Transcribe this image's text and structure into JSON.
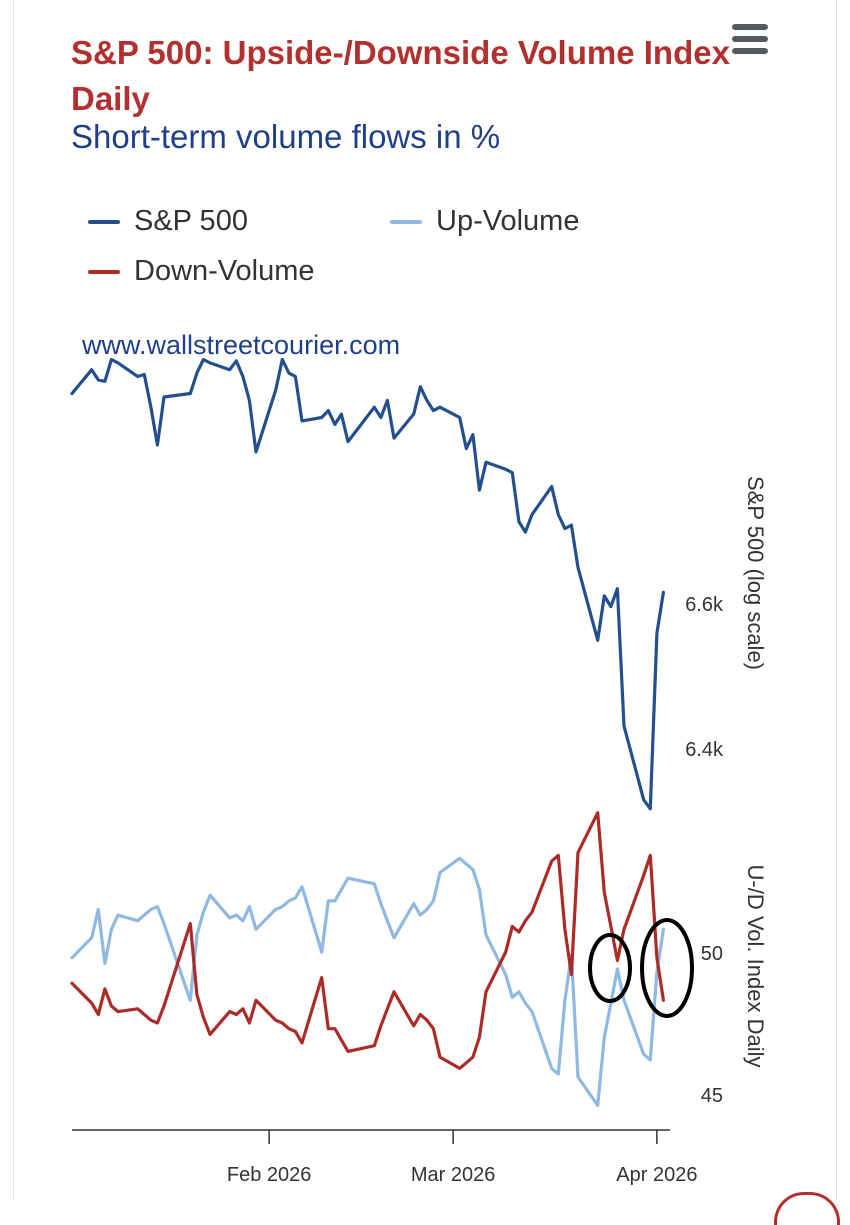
{
  "header": {
    "title": "S&P 500: Upside-/Downside Volume Index Daily",
    "subtitle": "Short-term volume flows in %",
    "menu_icon": "hamburger-menu-icon"
  },
  "watermark": "www.wallstreetcourier.com",
  "colors": {
    "title": "#b2302d",
    "subtitle": "#1f3f8c",
    "sp500": "#244f8e",
    "up_volume": "#8fb8e3",
    "down_volume": "#ad2b27"
  },
  "chart_data": {
    "type": "line",
    "title": "S&P 500: Upside-/Downside Volume Index Daily",
    "subtitle": "Short-term volume flows in %",
    "legend": {
      "placement": "top-left",
      "items": [
        "S&P 500",
        "Up-Volume",
        "Down-Volume"
      ]
    },
    "x_axis": {
      "type": "datetime",
      "tick_labels": [
        "Feb 2026",
        "Mar 2026",
        "Apr 2026"
      ],
      "range": [
        "2026-01-02",
        "2026-04-03"
      ]
    },
    "panels": [
      {
        "name": "price",
        "ylabel": "S&P 500 (log scale)",
        "scale": "log",
        "tick_labels": [
          "6.6k",
          "6.4k"
        ],
        "tick_values": [
          6600,
          6400
        ],
        "series": [
          {
            "name": "S&P 500",
            "dates": [
              "2026-01-02",
              "2026-01-05",
              "2026-01-06",
              "2026-01-07",
              "2026-01-08",
              "2026-01-09",
              "2026-01-12",
              "2026-01-13",
              "2026-01-14",
              "2026-01-15",
              "2026-01-16",
              "2026-01-20",
              "2026-01-21",
              "2026-01-22",
              "2026-01-23",
              "2026-01-26",
              "2026-01-27",
              "2026-01-28",
              "2026-01-29",
              "2026-01-30",
              "2026-02-02",
              "2026-02-03",
              "2026-02-04",
              "2026-02-05",
              "2026-02-06",
              "2026-02-09",
              "2026-02-10",
              "2026-02-11",
              "2026-02-12",
              "2026-02-13",
              "2026-02-17",
              "2026-02-18",
              "2026-02-19",
              "2026-02-20",
              "2026-02-23",
              "2026-02-24",
              "2026-02-25",
              "2026-02-26",
              "2026-02-27",
              "2026-03-02",
              "2026-03-03",
              "2026-03-04",
              "2026-03-05",
              "2026-03-06",
              "2026-03-09",
              "2026-03-10",
              "2026-03-11",
              "2026-03-12",
              "2026-03-13",
              "2026-03-16",
              "2026-03-17",
              "2026-03-18",
              "2026-03-19",
              "2026-03-20",
              "2026-03-23",
              "2026-03-24",
              "2026-03-25",
              "2026-03-26",
              "2026-03-27",
              "2026-03-30",
              "2026-03-31",
              "2026-04-01",
              "2026-04-02"
            ],
            "values": [
              6900,
              6935,
              6920,
              6918,
              6950,
              6945,
              6925,
              6928,
              6880,
              6825,
              6895,
              6900,
              6930,
              6950,
              6945,
              6935,
              6948,
              6925,
              6890,
              6815,
              6905,
              6950,
              6930,
              6925,
              6860,
              6865,
              6875,
              6855,
              6870,
              6830,
              6880,
              6865,
              6890,
              6835,
              6870,
              6910,
              6890,
              6875,
              6880,
              6865,
              6820,
              6840,
              6760,
              6800,
              6790,
              6785,
              6715,
              6700,
              6725,
              6765,
              6725,
              6705,
              6710,
              6650,
              6548,
              6610,
              6595,
              6620,
              6430,
              6330,
              6318,
              6558,
              6615
            ]
          }
        ]
      },
      {
        "name": "volume",
        "ylabel": "U-/D Vol. Index Daily",
        "tick_values": [
          50,
          45
        ],
        "series": [
          {
            "name": "Up-Volume",
            "values": [
              49.8,
              50.5,
              51.5,
              49.6,
              50.8,
              51.3,
              51.1,
              51.3,
              51.5,
              51.6,
              51.0,
              48.3,
              50.6,
              51.4,
              52.0,
              51.2,
              51.3,
              51.1,
              51.6,
              50.8,
              51.5,
              51.6,
              51.8,
              51.9,
              52.3,
              50.0,
              51.8,
              51.8,
              52.2,
              52.6,
              52.4,
              51.7,
              51.1,
              50.5,
              51.7,
              51.3,
              51.5,
              51.8,
              52.8,
              53.3,
              53.1,
              52.9,
              52.2,
              50.6,
              49.2,
              48.4,
              48.6,
              48.2,
              47.9,
              45.9,
              45.7,
              48.3,
              49.9,
              45.6,
              44.6,
              47.0,
              48.2,
              49.4,
              48.3,
              46.4,
              46.2,
              49.3,
              50.8
            ],
            "dates_ref": "panels.0.series.0.dates"
          },
          {
            "name": "Down-Volume",
            "values": [
              48.9,
              48.2,
              47.8,
              48.7,
              48.1,
              47.9,
              48.0,
              47.8,
              47.6,
              47.5,
              48.1,
              51.0,
              48.5,
              47.7,
              47.1,
              47.9,
              47.8,
              48.0,
              47.5,
              48.3,
              47.6,
              47.5,
              47.3,
              47.2,
              46.8,
              49.1,
              47.3,
              47.3,
              46.9,
              46.5,
              46.7,
              47.4,
              48.0,
              48.6,
              47.4,
              47.8,
              47.6,
              47.3,
              46.3,
              45.9,
              46.1,
              46.3,
              47.0,
              48.6,
              50.0,
              50.9,
              50.7,
              51.1,
              51.4,
              53.2,
              53.4,
              50.8,
              49.2,
              53.5,
              54.9,
              52.1,
              50.9,
              49.7,
              50.8,
              52.7,
              53.4,
              49.8,
              48.3
            ],
            "dates_ref": "panels.0.series.0.dates"
          }
        ]
      }
    ],
    "annotations": [
      {
        "type": "ellipse",
        "label": "",
        "near_date": "2026-03-27"
      },
      {
        "type": "ellipse",
        "label": "",
        "near_date": "2026-04-02"
      }
    ],
    "grid": false
  }
}
